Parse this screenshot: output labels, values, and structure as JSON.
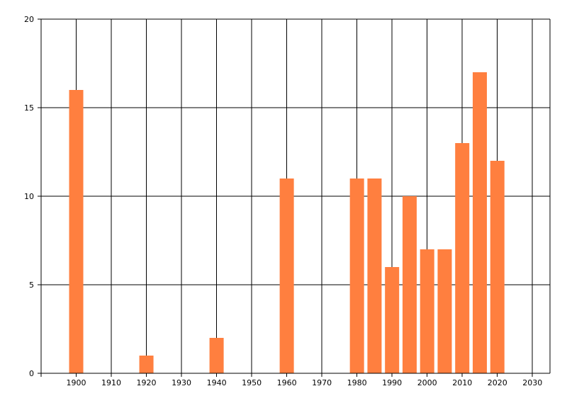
{
  "colors": {
    "bar": "#ff7f3f",
    "grid": "#000000",
    "background": "#ffffff"
  },
  "chart_data": {
    "type": "bar",
    "xlabel": "",
    "ylabel": "",
    "xlim": [
      1890,
      2035
    ],
    "ylim": [
      0,
      20
    ],
    "x_ticks": [
      1900,
      1910,
      1920,
      1930,
      1940,
      1950,
      1960,
      1970,
      1980,
      1990,
      2000,
      2010,
      2020,
      2030
    ],
    "y_ticks": [
      0,
      5,
      10,
      15,
      20
    ],
    "grid": true,
    "bars": [
      {
        "x": 1900,
        "value": 16
      },
      {
        "x": 1920,
        "value": 1
      },
      {
        "x": 1940,
        "value": 2
      },
      {
        "x": 1960,
        "value": 11
      },
      {
        "x": 1980,
        "value": 11
      },
      {
        "x": 1985,
        "value": 11
      },
      {
        "x": 1990,
        "value": 6
      },
      {
        "x": 1995,
        "value": 10
      },
      {
        "x": 2000,
        "value": 7
      },
      {
        "x": 2005,
        "value": 7
      },
      {
        "x": 2010,
        "value": 13
      },
      {
        "x": 2015,
        "value": 17
      },
      {
        "x": 2020,
        "value": 12
      }
    ]
  }
}
